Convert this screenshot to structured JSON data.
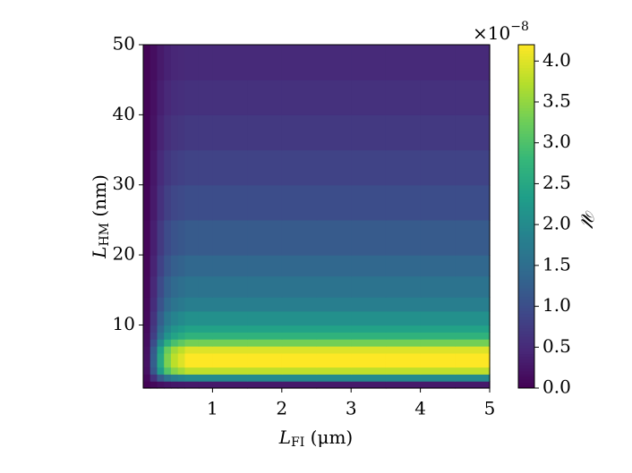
{
  "chart_data": {
    "type": "heatmap",
    "xlabel": {
      "symbol": "L",
      "sub": "FI",
      "unit": " (μm)"
    },
    "ylabel": {
      "symbol": "L",
      "sub": "HM",
      "unit": " (nm)"
    },
    "colorbar_label": "𝒰",
    "colorbar_multiplier": {
      "base": "×10",
      "exponent": "−8"
    },
    "colormap": "viridis",
    "xlim": [
      0,
      5
    ],
    "xticks": [
      1,
      2,
      3,
      4,
      5
    ],
    "ylim": [
      1,
      50
    ],
    "yticks": [
      10,
      20,
      30,
      40,
      50
    ],
    "clim": [
      0,
      4.2
    ],
    "cticks": [
      {
        "value": 0,
        "label": "0.0"
      },
      0.5,
      {
        "value": 1,
        "label": "1.0"
      },
      1.5,
      {
        "value": 2,
        "label": "2.0"
      },
      2.5,
      {
        "value": 3,
        "label": "3.0"
      },
      3.5,
      {
        "value": 4,
        "label": "4.0"
      }
    ],
    "xbins": [
      0,
      0.1,
      0.2,
      0.3,
      0.4,
      0.5,
      0.6,
      0.8,
      1,
      1.5,
      2,
      2.5,
      3,
      3.5,
      4,
      4.5,
      5
    ],
    "ybins": [
      1,
      2,
      3,
      4,
      5,
      6,
      7,
      8,
      9,
      10,
      12,
      14,
      17,
      20,
      25,
      30,
      35,
      40,
      45,
      50
    ],
    "values": [
      [
        0.02,
        0.09,
        0.18,
        0.24,
        0.27,
        0.29,
        0.3,
        0.3,
        0.3,
        0.3,
        0.3,
        0.3,
        0.3,
        0.3,
        0.3,
        0.3
      ],
      [
        0.1,
        0.6,
        1.2,
        1.6,
        1.8,
        1.9,
        2.0,
        2.0,
        2.0,
        2.0,
        2.0,
        2.0,
        2.0,
        2.0,
        2.0,
        2.0
      ],
      [
        0.19,
        1.14,
        2.28,
        3.04,
        3.42,
        3.61,
        3.8,
        3.8,
        3.8,
        3.8,
        3.8,
        3.8,
        3.8,
        3.8,
        3.8,
        3.8
      ],
      [
        0.21,
        1.26,
        2.52,
        3.36,
        3.78,
        3.99,
        4.2,
        4.2,
        4.2,
        4.2,
        4.2,
        4.2,
        4.2,
        4.2,
        4.2,
        4.2
      ],
      [
        0.21,
        1.26,
        2.52,
        3.36,
        3.78,
        3.99,
        4.2,
        4.2,
        4.2,
        4.2,
        4.2,
        4.2,
        4.2,
        4.2,
        4.2,
        4.2
      ],
      [
        0.2,
        1.2,
        2.4,
        3.2,
        3.6,
        3.8,
        4.0,
        4.0,
        4.0,
        4.0,
        4.0,
        4.0,
        4.0,
        4.0,
        4.0,
        4.0
      ],
      [
        0.17,
        0.99,
        1.98,
        2.64,
        2.97,
        3.14,
        3.3,
        3.3,
        3.3,
        3.3,
        3.3,
        3.3,
        3.3,
        3.3,
        3.3,
        3.3
      ],
      [
        0.14,
        0.81,
        1.62,
        2.16,
        2.43,
        2.57,
        2.7,
        2.7,
        2.7,
        2.7,
        2.7,
        2.7,
        2.7,
        2.7,
        2.7,
        2.7
      ],
      [
        0.12,
        0.72,
        1.44,
        1.92,
        2.16,
        2.28,
        2.4,
        2.4,
        2.4,
        2.4,
        2.4,
        2.4,
        2.4,
        2.4,
        2.4,
        2.4
      ],
      [
        0.11,
        0.63,
        1.26,
        1.68,
        1.89,
        2.0,
        2.1,
        2.1,
        2.1,
        2.1,
        2.1,
        2.1,
        2.1,
        2.1,
        2.1,
        2.1
      ],
      [
        0.09,
        0.54,
        1.08,
        1.44,
        1.62,
        1.71,
        1.8,
        1.8,
        1.8,
        1.8,
        1.8,
        1.8,
        1.8,
        1.8,
        1.8,
        1.8
      ],
      [
        0.08,
        0.48,
        0.96,
        1.28,
        1.44,
        1.52,
        1.6,
        1.6,
        1.6,
        1.6,
        1.6,
        1.6,
        1.6,
        1.6,
        1.6,
        1.6
      ],
      [
        0.07,
        0.42,
        0.84,
        1.12,
        1.26,
        1.33,
        1.4,
        1.4,
        1.4,
        1.4,
        1.4,
        1.4,
        1.4,
        1.4,
        1.4,
        1.4
      ],
      [
        0.06,
        0.36,
        0.72,
        0.96,
        1.08,
        1.14,
        1.2,
        1.2,
        1.2,
        1.2,
        1.2,
        1.2,
        1.2,
        1.2,
        1.2,
        1.2
      ],
      [
        0.05,
        0.3,
        0.6,
        0.8,
        0.9,
        0.95,
        1,
        1,
        1,
        1,
        1,
        1,
        1,
        1,
        1,
        1
      ],
      [
        0.04,
        0.26,
        0.51,
        0.68,
        0.77,
        0.81,
        0.85,
        0.85,
        0.85,
        0.85,
        0.85,
        0.85,
        0.85,
        0.85,
        0.85,
        0.85
      ],
      [
        0.04,
        0.21,
        0.42,
        0.56,
        0.63,
        0.67,
        0.7,
        0.7,
        0.7,
        0.7,
        0.7,
        0.7,
        0.7,
        0.7,
        0.7,
        0.7
      ],
      [
        0.03,
        0.18,
        0.36,
        0.48,
        0.54,
        0.57,
        0.6,
        0.6,
        0.6,
        0.6,
        0.6,
        0.6,
        0.6,
        0.6,
        0.6,
        0.6
      ],
      [
        0.03,
        0.15,
        0.3,
        0.4,
        0.45,
        0.48,
        0.5,
        0.5,
        0.5,
        0.5,
        0.5,
        0.5,
        0.5,
        0.5,
        0.5,
        0.5
      ]
    ]
  }
}
